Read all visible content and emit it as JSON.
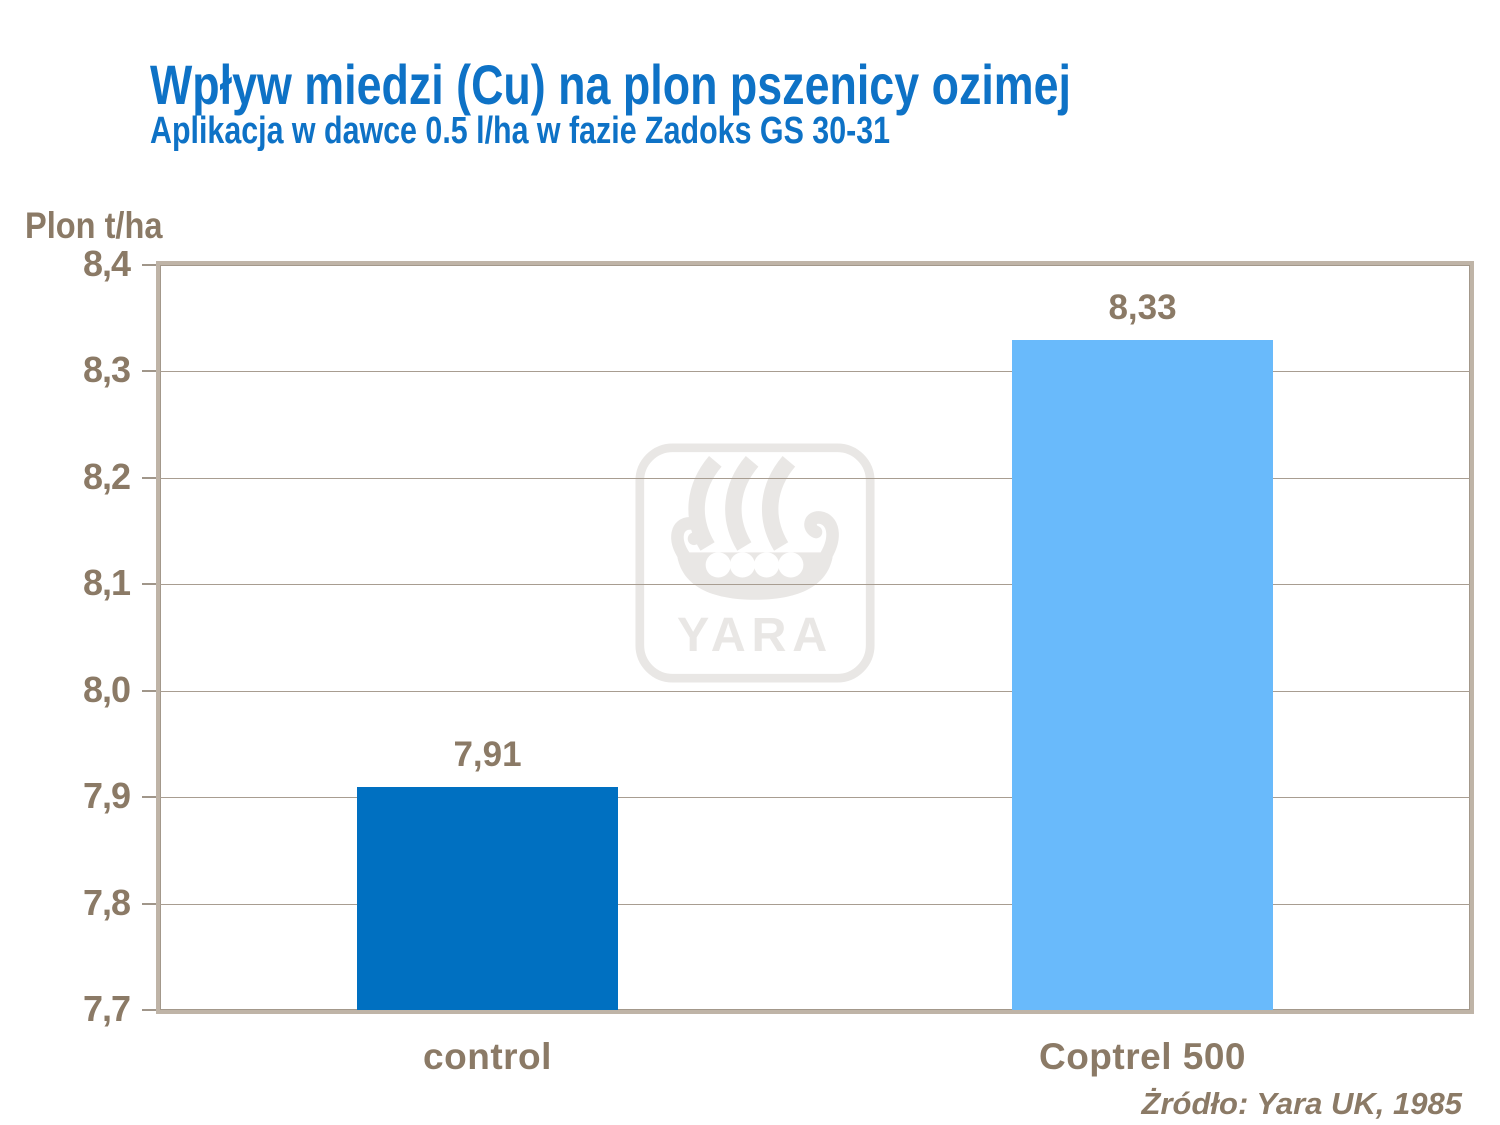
{
  "header": {
    "title": "Wpływ miedzi (Cu) na plon pszenicy ozimej",
    "subtitle": "Aplikacja w dawce 0.5 l/ha w fazie Zadoks GS 30-31"
  },
  "footer": {
    "source": "Żródło: Yara UK, 1985"
  },
  "watermark": {
    "text": "YARA",
    "icon": "viking-ship-icon",
    "color": "#E9E7E5"
  },
  "colors": {
    "title_blue": "#0E72C6",
    "axis_text_brown": "#8B7A66",
    "gridline": "#A89D91",
    "plot_border": "#BFB4A7",
    "background": "#FFFFFF"
  },
  "chart_data": {
    "type": "bar",
    "title": "Wpływ miedzi (Cu) na plon pszenicy ozimej",
    "subtitle": "Aplikacja w dawce 0.5 l/ha w fazie Zadoks GS 30-31",
    "ylabel": "Plon t/ha",
    "xlabel": "",
    "categories": [
      "control",
      "Coptrel 500"
    ],
    "values": [
      7.91,
      8.33
    ],
    "value_labels": [
      "7,91",
      "8,33"
    ],
    "bar_colors": [
      "#0070C1",
      "#69BAFB"
    ],
    "ylim": [
      7.7,
      8.4
    ],
    "yticks": [
      "8,4",
      "8,3",
      "8,2",
      "8,1",
      "8,0",
      "7,9",
      "7,8",
      "7,7"
    ],
    "grid": true,
    "legend": false,
    "decimal_separator": ","
  }
}
